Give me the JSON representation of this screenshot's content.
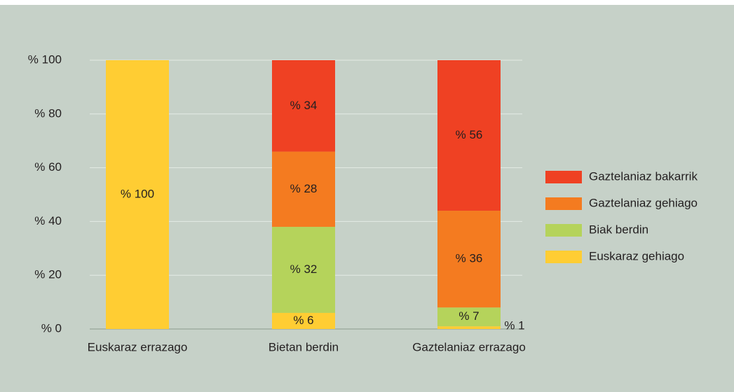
{
  "chart_data": {
    "type": "stacked_bar",
    "categories": [
      "Euskaraz errazago",
      "Bietan berdin",
      "Gaztelaniaz errazago"
    ],
    "series": [
      {
        "name": "Euskaraz gehiago",
        "color": "#ffcd33",
        "values": [
          100,
          6,
          1
        ],
        "value_labels": [
          "% 100",
          "% 6",
          "% 1"
        ]
      },
      {
        "name": "Biak berdin",
        "color": "#b5d35b",
        "values": [
          0,
          32,
          7
        ],
        "value_labels": [
          null,
          "% 32",
          "% 7"
        ]
      },
      {
        "name": "Gaztelaniaz gehiago",
        "color": "#f47b20",
        "values": [
          0,
          28,
          36
        ],
        "value_labels": [
          null,
          "% 28",
          "% 36"
        ]
      },
      {
        "name": "Gaztelaniaz bakarrik",
        "color": "#ef4123",
        "values": [
          0,
          34,
          56
        ],
        "value_labels": [
          null,
          "% 34",
          "% 56"
        ]
      }
    ],
    "ylim": [
      0,
      100
    ],
    "yticks": [
      {
        "value": 0,
        "label": "% 0"
      },
      {
        "value": 20,
        "label": "% 20"
      },
      {
        "value": 40,
        "label": "% 40"
      },
      {
        "value": 60,
        "label": "% 60"
      },
      {
        "value": 80,
        "label": "% 80"
      },
      {
        "value": 100,
        "label": "% 100"
      }
    ],
    "grid": true,
    "legend": "right"
  }
}
